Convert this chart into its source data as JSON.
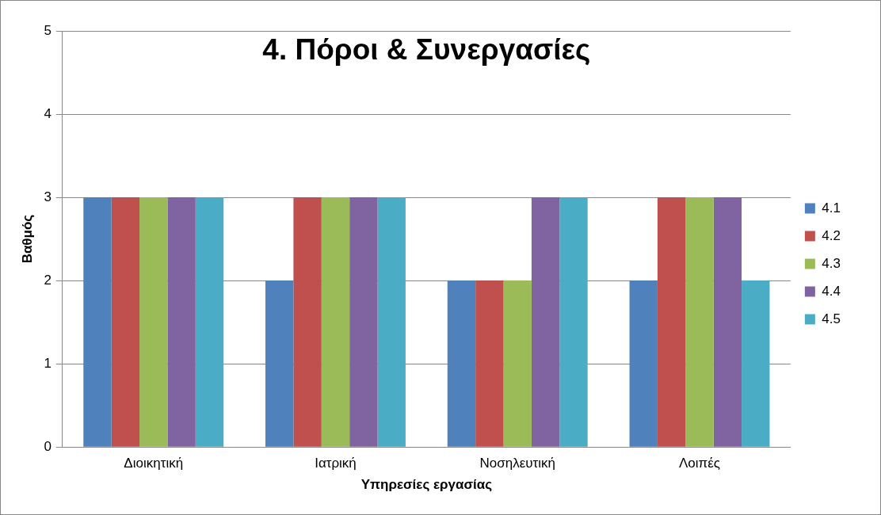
{
  "chart_data": {
    "type": "bar",
    "title": "4. Πόροι & Συνεργασίες",
    "xlabel": "Υπηρεσίες εργασίας",
    "ylabel": "Βαθμός",
    "categories": [
      "Διοικητική",
      "Ιατρική",
      "Νοσηλευτική",
      "Λοιπές"
    ],
    "series": [
      {
        "name": "4.1",
        "color": "#4f81bd",
        "values": [
          3,
          2,
          2,
          2
        ]
      },
      {
        "name": "4.2",
        "color": "#c0504d",
        "values": [
          3,
          3,
          2,
          3
        ]
      },
      {
        "name": "4.3",
        "color": "#9bbb59",
        "values": [
          3,
          3,
          2,
          3
        ]
      },
      {
        "name": "4.4",
        "color": "#8064a2",
        "values": [
          3,
          3,
          3,
          3
        ]
      },
      {
        "name": "4.5",
        "color": "#4bacc6",
        "values": [
          3,
          3,
          3,
          2
        ]
      }
    ],
    "ylim": [
      0,
      5
    ],
    "yticks": [
      0,
      1,
      2,
      3,
      4,
      5
    ],
    "grid": "y",
    "legend": "right"
  }
}
